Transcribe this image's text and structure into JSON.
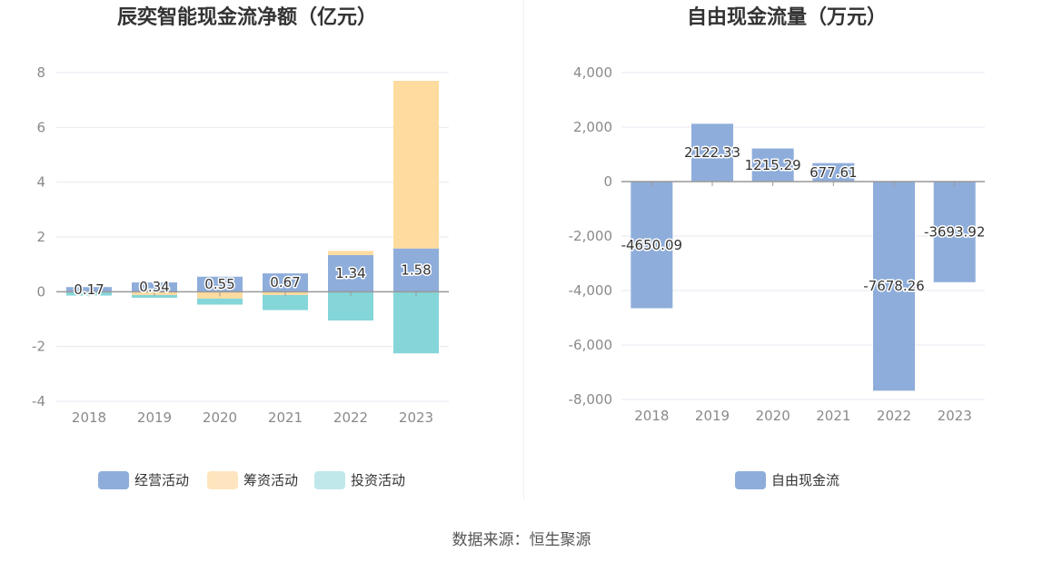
{
  "chart_data": [
    {
      "type": "bar",
      "stacked": true,
      "title": "辰奕智能现金流净额（亿元）",
      "categories": [
        "2018",
        "2019",
        "2020",
        "2021",
        "2022",
        "2023"
      ],
      "ylim": [
        -4,
        8
      ],
      "yticks": [
        -4,
        -2,
        0,
        2,
        4,
        6,
        8
      ],
      "legend_position": "bottom",
      "series": [
        {
          "name": "经营活动",
          "color": "#8eaddb",
          "values": [
            0.17,
            0.34,
            0.55,
            0.67,
            1.34,
            1.58
          ]
        },
        {
          "name": "筹资活动",
          "color": "#fedb9f",
          "values": [
            -0.02,
            -0.12,
            -0.25,
            -0.12,
            0.15,
            6.12
          ]
        },
        {
          "name": "投资活动",
          "color": "#84d6d9",
          "values": [
            -0.12,
            -0.1,
            -0.22,
            -0.55,
            -1.05,
            -2.25
          ]
        }
      ],
      "data_labels": [
        "0.17",
        "0.34",
        "0.55",
        "0.67",
        "1.34",
        "1.58"
      ],
      "legend_colors": [
        "#8eaddb",
        "#fee5bf",
        "#c0e8ea"
      ]
    },
    {
      "type": "bar",
      "title": "自由现金流量（万元）",
      "categories": [
        "2018",
        "2019",
        "2020",
        "2021",
        "2022",
        "2023"
      ],
      "ylim": [
        -8000,
        4000
      ],
      "yticks": [
        -8000,
        -6000,
        -4000,
        -2000,
        0,
        2000,
        4000
      ],
      "ytick_labels": [
        "-8,000",
        "-6,000",
        "-4,000",
        "-2,000",
        "0",
        "2,000",
        "4,000"
      ],
      "legend_position": "bottom",
      "series": [
        {
          "name": "自由现金流",
          "color": "#8eaddb",
          "values": [
            -4650.09,
            2122.33,
            1215.29,
            677.61,
            -7678.26,
            -3693.92
          ]
        }
      ],
      "data_labels": [
        "-4650.09",
        "2122.33",
        "1215.29",
        "677.61",
        "-7678.26",
        "-3693.92"
      ]
    }
  ],
  "footer": {
    "source": "数据来源：恒生聚源"
  }
}
